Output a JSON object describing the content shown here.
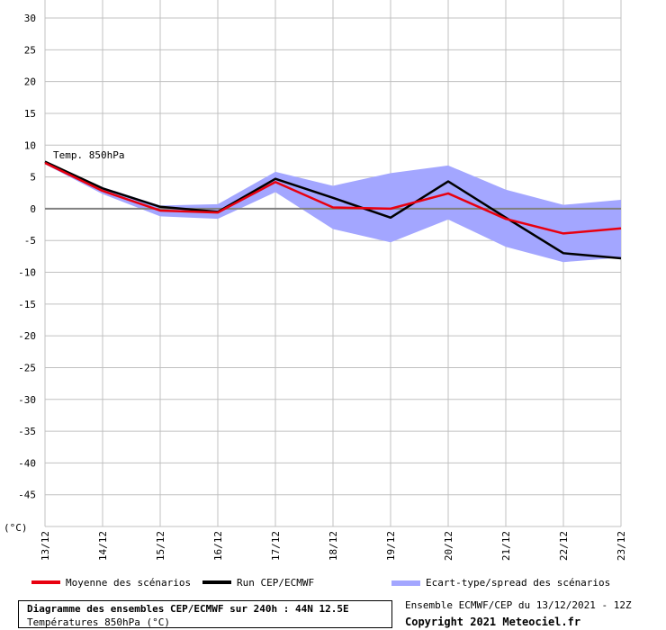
{
  "colors": {
    "mean": "#e8000f",
    "run": "#000000",
    "spread": "#a3a6ff",
    "grid": "#c0c0c0",
    "zero": "#808080"
  },
  "title_box": {
    "title": "Diagramme des ensembles CEP/ECMWF sur 240h : 44N 12.5E",
    "subtitle": "Températures 850hPa (°C)"
  },
  "run_info": "Ensemble ECMWF/CEP du 13/12/2021 - 12Z",
  "copyright": "Copyright 2021 Meteociel.fr",
  "legend": [
    {
      "label": "Moyenne des scénarios",
      "color": "#e8000f"
    },
    {
      "label": "Run CEP/ECMWF",
      "color": "#000000"
    },
    {
      "label": "Ecart-type/spread des scénarios",
      "color": "#a3a6ff"
    }
  ],
  "chart_data": {
    "type": "line",
    "annotation": "Temp. 850hPa",
    "ylabel": "(°C)",
    "ylim": [
      -50,
      30
    ],
    "yticks": [
      30,
      25,
      20,
      15,
      10,
      5,
      0,
      -5,
      -10,
      -15,
      -20,
      -25,
      -30,
      -35,
      -40,
      -45
    ],
    "x_labels": [
      "13/12",
      "14/12",
      "15/12",
      "16/12",
      "17/12",
      "18/12",
      "19/12",
      "20/12",
      "21/12",
      "22/12",
      "23/12"
    ],
    "grid": true,
    "series": [
      {
        "name": "Moyenne des scénarios",
        "x": [
          0,
          1,
          2,
          3,
          4,
          5,
          6,
          7,
          8,
          9,
          10
        ],
        "values": [
          7.2,
          2.8,
          -0.3,
          -0.6,
          4.2,
          0.2,
          0.0,
          2.4,
          -1.6,
          -3.9,
          -3.1
        ]
      },
      {
        "name": "Run CEP/ECMWF",
        "x": [
          0,
          1,
          2,
          3,
          4,
          5,
          6,
          7,
          8,
          9,
          10
        ],
        "values": [
          7.4,
          3.2,
          0.3,
          -0.5,
          4.7,
          1.7,
          -1.4,
          4.3,
          -1.4,
          -7.0,
          -7.8
        ]
      }
    ],
    "spread": {
      "name": "Ecart-type/spread des scénarios",
      "x": [
        0,
        1,
        2,
        3,
        4,
        5,
        6,
        7,
        8,
        9,
        10
      ],
      "upper": [
        7.5,
        3.4,
        0.5,
        0.7,
        5.8,
        3.6,
        5.6,
        6.8,
        3.0,
        0.6,
        1.4
      ],
      "lower": [
        7.0,
        2.3,
        -1.2,
        -1.6,
        2.6,
        -3.2,
        -5.3,
        -1.7,
        -6.0,
        -8.4,
        -7.7
      ]
    }
  }
}
